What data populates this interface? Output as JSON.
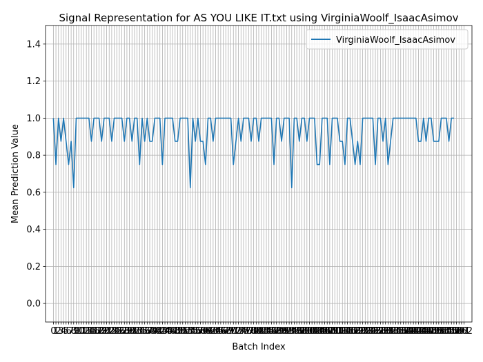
{
  "chart_data": {
    "type": "line",
    "title": "Signal Representation for AS YOU LIKE IT.txt using VirginiaWoolf_IsaacAsimov",
    "xlabel": "Batch Index",
    "ylabel": "Mean Prediction Value",
    "ylim": [
      -0.1,
      1.5
    ],
    "xlim": [
      -3.1,
      165.1
    ],
    "yticks": [
      0.0,
      0.2,
      0.4,
      0.6,
      0.8,
      1.0,
      1.2,
      1.4
    ],
    "xticks_first": 0,
    "xticks_last": 162,
    "grid": true,
    "legend_position": "top-right",
    "color": "#1f77b4",
    "series": [
      {
        "name": "VirginiaWoolf_IsaacAsimov",
        "values": [
          1.0,
          0.75,
          1.0,
          0.875,
          1.0,
          0.875,
          0.75,
          0.875,
          0.625,
          1.0,
          1.0,
          1.0,
          1.0,
          1.0,
          1.0,
          0.875,
          1.0,
          1.0,
          1.0,
          0.875,
          1.0,
          1.0,
          1.0,
          0.875,
          1.0,
          1.0,
          1.0,
          1.0,
          0.875,
          1.0,
          1.0,
          0.875,
          1.0,
          1.0,
          0.75,
          1.0,
          0.875,
          1.0,
          0.875,
          0.875,
          1.0,
          1.0,
          1.0,
          0.75,
          1.0,
          1.0,
          1.0,
          1.0,
          0.875,
          0.875,
          1.0,
          1.0,
          1.0,
          1.0,
          0.625,
          1.0,
          0.875,
          1.0,
          0.875,
          0.875,
          0.75,
          1.0,
          1.0,
          0.875,
          1.0,
          1.0,
          1.0,
          1.0,
          1.0,
          1.0,
          1.0,
          0.75,
          0.875,
          1.0,
          0.875,
          1.0,
          1.0,
          1.0,
          0.875,
          1.0,
          1.0,
          0.875,
          1.0,
          1.0,
          1.0,
          1.0,
          1.0,
          0.75,
          1.0,
          1.0,
          0.875,
          1.0,
          1.0,
          1.0,
          0.625,
          1.0,
          1.0,
          0.875,
          1.0,
          1.0,
          0.875,
          1.0,
          1.0,
          1.0,
          0.75,
          0.75,
          1.0,
          1.0,
          1.0,
          0.75,
          1.0,
          1.0,
          1.0,
          0.875,
          0.875,
          0.75,
          1.0,
          1.0,
          0.875,
          0.75,
          0.875,
          0.75,
          1.0,
          1.0,
          1.0,
          1.0,
          1.0,
          0.75,
          1.0,
          1.0,
          0.875,
          1.0,
          0.75,
          0.875,
          1.0,
          1.0,
          1.0,
          1.0,
          1.0,
          1.0,
          1.0,
          1.0,
          1.0,
          1.0,
          0.875,
          0.875,
          1.0,
          0.875,
          1.0,
          1.0,
          0.875,
          0.875,
          0.875,
          1.0,
          1.0,
          1.0,
          0.875,
          1.0,
          1.0
        ]
      }
    ]
  }
}
